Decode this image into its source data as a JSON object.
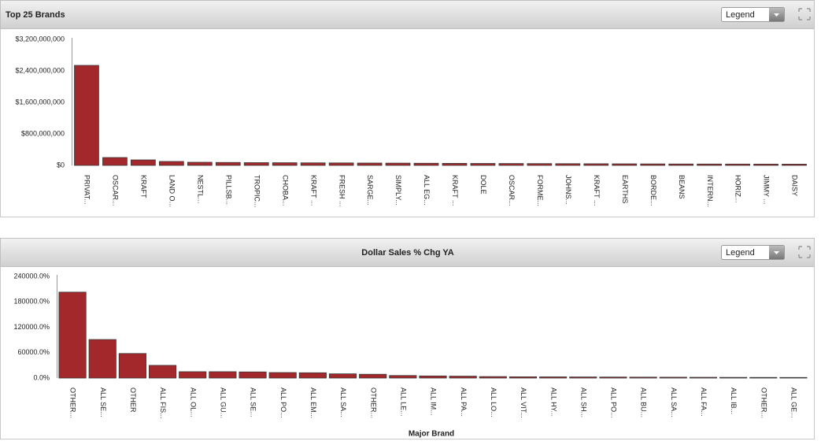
{
  "chart_data": [
    {
      "type": "bar",
      "title": "Top 25 Brands",
      "legend_button": "Legend",
      "color": "#a3282b",
      "grid": false,
      "categories": [
        "PRIVAT...",
        "OSCAR...",
        "KRAFT",
        "LAND O...",
        "NESTL...",
        "PILLSB...",
        "TROPIC...",
        "CHOBA...",
        "KRAFT ...",
        "FRESH ...",
        "SARGE...",
        "SIMPLY...",
        "ALL EG...",
        "KRAFT ...",
        "DOLE",
        "OSCAR...",
        "FORME...",
        "JOHNS...",
        "KRAFT ...",
        "EARTHS",
        "BORDE...",
        "BEANS",
        "INTERN...",
        "HORIZ...",
        "JIMMY ...",
        "DAISY"
      ],
      "values": [
        2540000000,
        200000000,
        140000000,
        100000000,
        80000000,
        75000000,
        70000000,
        68000000,
        65000000,
        63000000,
        60000000,
        58000000,
        55000000,
        52000000,
        50000000,
        48000000,
        46000000,
        44000000,
        42000000,
        40000000,
        38000000,
        36000000,
        35000000,
        34000000,
        33000000,
        32000000
      ],
      "ylim": [
        0,
        3200000000
      ],
      "yticks": [
        {
          "value": 0,
          "label": "$0"
        },
        {
          "value": 800000000,
          "label": "$800,000,000"
        },
        {
          "value": 1600000000,
          "label": "$1,600,000,000"
        },
        {
          "value": 2400000000,
          "label": "$2,400,000,000"
        },
        {
          "value": 3200000000,
          "label": "$3,200,000,000"
        }
      ]
    },
    {
      "type": "bar",
      "title": "Dollar Sales % Chg YA",
      "legend_button": "Legend",
      "x_label": "Major Brand",
      "color": "#a3282b",
      "grid": false,
      "categories": [
        "OTHER...",
        "ALL SE...",
        "OTHER",
        "ALL FIS...",
        "ALL OL...",
        "ALL GU...",
        "ALL SE...",
        "ALL PO...",
        "ALL EM...",
        "ALL SA...",
        "OTHER...",
        "ALL LE...",
        "ALL IM...",
        "ALL PA...",
        "ALL LO...",
        "ALL VIT...",
        "ALL HY...",
        "ALL SH...",
        "ALL PO...",
        "ALL BU...",
        "ALL SA...",
        "ALL FA...",
        "ALL IB...",
        "OTHER...",
        "ALL GE..."
      ],
      "values": [
        203000,
        91000,
        58000,
        30000,
        15000,
        15000,
        14500,
        13000,
        12500,
        10000,
        9000,
        6000,
        5000,
        4500,
        3500,
        3000,
        2800,
        2600,
        2400,
        2200,
        2000,
        1800,
        1600,
        1500,
        1400
      ],
      "ylim": [
        0,
        240000
      ],
      "yticks": [
        {
          "value": 0,
          "label": "0.0%"
        },
        {
          "value": 60000,
          "label": "60000.0%"
        },
        {
          "value": 120000,
          "label": "120000.0%"
        },
        {
          "value": 180000,
          "label": "180000.0%"
        },
        {
          "value": 240000,
          "label": "240000.0%"
        }
      ]
    }
  ]
}
